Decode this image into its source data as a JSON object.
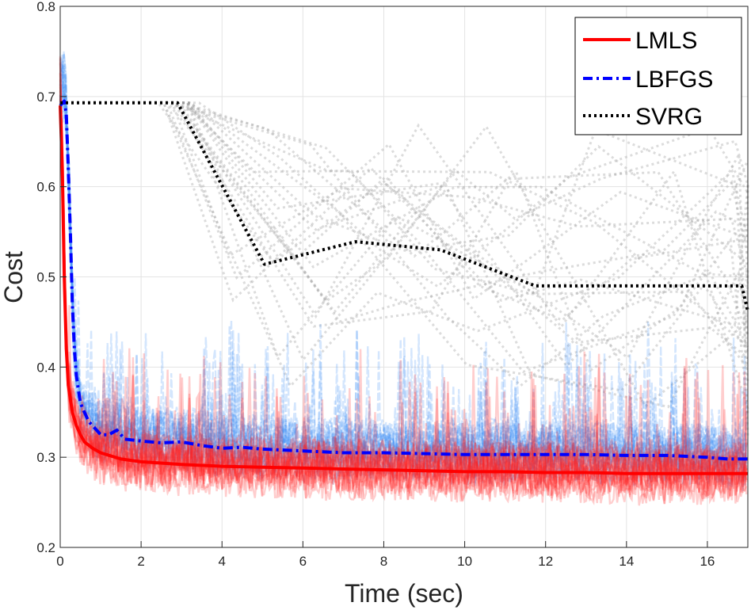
{
  "chart_data": {
    "type": "line",
    "title": "",
    "xlabel": "Time (sec)",
    "ylabel": "Cost",
    "xlim": [
      0,
      17
    ],
    "ylim": [
      0.2,
      0.8
    ],
    "xticks": [
      0,
      2,
      4,
      6,
      8,
      10,
      12,
      14,
      16
    ],
    "xtick_labels": [
      "0",
      "2",
      "4",
      "6",
      "8",
      "10",
      "12",
      "14",
      "16"
    ],
    "yticks": [
      0.2,
      0.3,
      0.4,
      0.5,
      0.6,
      0.7,
      0.8
    ],
    "ytick_labels": [
      "0.2",
      "0.3",
      "0.4",
      "0.5",
      "0.6",
      "0.7",
      "0.8"
    ],
    "grid": true,
    "legend_position": "top-right",
    "series": [
      {
        "name": "LMLS",
        "style": "solid",
        "color": "#ff0000",
        "x": [
          0,
          0.05,
          0.1,
          0.15,
          0.2,
          0.3,
          0.4,
          0.5,
          0.6,
          0.8,
          1.0,
          1.5,
          2,
          3,
          4,
          5,
          6,
          7,
          8,
          9,
          10,
          11,
          12,
          13,
          14,
          15,
          16,
          17
        ],
        "y": [
          0.69,
          0.62,
          0.5,
          0.42,
          0.38,
          0.35,
          0.335,
          0.325,
          0.317,
          0.31,
          0.305,
          0.298,
          0.295,
          0.292,
          0.29,
          0.289,
          0.288,
          0.287,
          0.286,
          0.285,
          0.284,
          0.284,
          0.283,
          0.283,
          0.282,
          0.282,
          0.282,
          0.282
        ]
      },
      {
        "name": "LBFGS",
        "style": "dash-dot",
        "color": "#0000ff",
        "x": [
          0,
          0.1,
          0.15,
          0.2,
          0.25,
          0.3,
          0.35,
          0.4,
          0.5,
          0.6,
          0.7,
          0.8,
          0.9,
          1.0,
          1.2,
          1.4,
          1.6,
          2,
          2.5,
          3,
          3.5,
          4,
          4.5,
          5,
          6,
          7,
          8,
          9,
          10,
          11,
          12,
          13,
          14,
          15,
          16,
          16.5,
          17
        ],
        "y": [
          0.69,
          0.695,
          0.68,
          0.62,
          0.55,
          0.47,
          0.42,
          0.39,
          0.36,
          0.35,
          0.34,
          0.335,
          0.33,
          0.325,
          0.325,
          0.33,
          0.32,
          0.318,
          0.316,
          0.317,
          0.313,
          0.31,
          0.311,
          0.309,
          0.307,
          0.305,
          0.305,
          0.304,
          0.303,
          0.303,
          0.303,
          0.303,
          0.302,
          0.302,
          0.3,
          0.298,
          0.298
        ]
      },
      {
        "name": "SVRG",
        "style": "dotted",
        "color": "#000000",
        "x": [
          0,
          2.9,
          5.05,
          7.3,
          9.4,
          11.75,
          16.85,
          17
        ],
        "y": [
          0.693,
          0.693,
          0.514,
          0.539,
          0.53,
          0.49,
          0.49,
          0.462
        ]
      }
    ],
    "background_runs": {
      "LMLS": "many translucent red runs around the LMLS mean",
      "LBFGS": "many translucent blue runs around the LBFGS mean",
      "SVRG": "many translucent gray dotted runs around the SVRG mean"
    }
  }
}
